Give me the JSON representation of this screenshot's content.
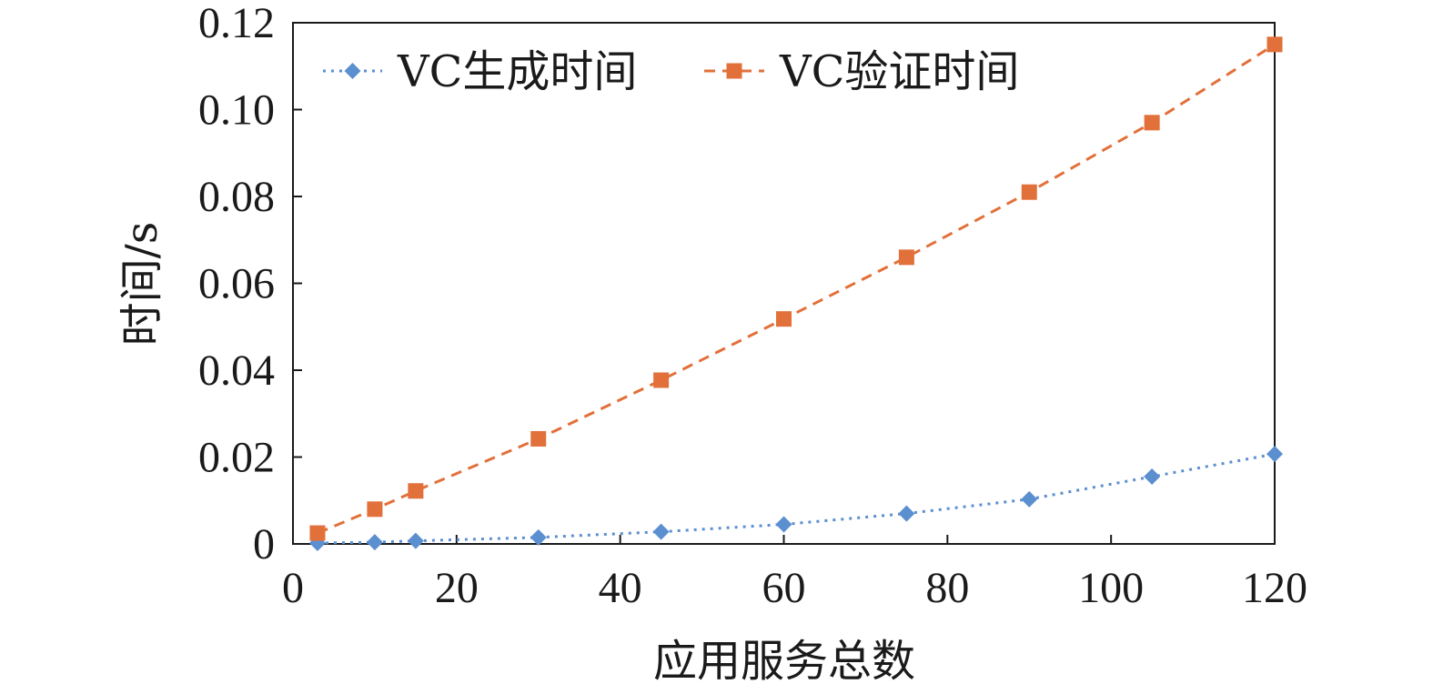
{
  "chart_data": {
    "type": "line",
    "xlabel": "应用服务总数",
    "ylabel": "时间/s",
    "xlim": [
      0,
      120
    ],
    "ylim": [
      0,
      0.12
    ],
    "x_ticks": [
      "0",
      "20",
      "40",
      "60",
      "80",
      "100",
      "120"
    ],
    "y_ticks": [
      "0",
      "0.02",
      "0.04",
      "0.06",
      "0.08",
      "0.10",
      "0.12"
    ],
    "grid": false,
    "legend_position": "top-inside",
    "series": [
      {
        "name": "VC生成时间",
        "color": "#5b8fd0",
        "marker": "diamond",
        "line_style": "dotted",
        "x": [
          3,
          10,
          15,
          30,
          45,
          60,
          75,
          90,
          105,
          120
        ],
        "y": [
          0.0002,
          0.0004,
          0.0007,
          0.0015,
          0.0028,
          0.0045,
          0.007,
          0.0103,
          0.0155,
          0.0207
        ]
      },
      {
        "name": "VC验证时间",
        "color": "#e2703a",
        "marker": "square",
        "line_style": "dashed",
        "x": [
          3,
          10,
          15,
          30,
          45,
          60,
          75,
          90,
          105,
          120
        ],
        "y": [
          0.0025,
          0.008,
          0.0122,
          0.0242,
          0.0377,
          0.0518,
          0.066,
          0.081,
          0.097,
          0.115
        ]
      }
    ]
  }
}
